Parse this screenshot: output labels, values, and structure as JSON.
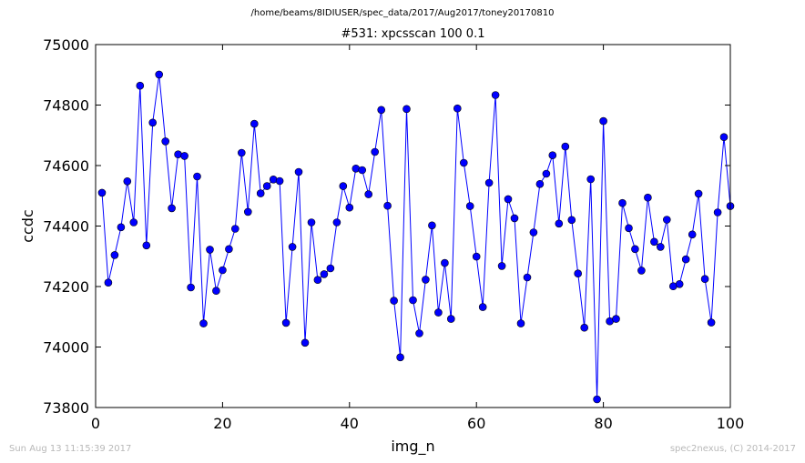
{
  "supertitle": "/home/beams/8IDIUSER/spec_data/2017/Aug2017/toney20170810",
  "title": "#531: xpcsscan 100 0.1",
  "footer_left": "Sun Aug 13 11:15:39 2017",
  "footer_right": "spec2nexus, (C) 2014-2017",
  "colors": {
    "series": "#0000ff",
    "axes": "#000000",
    "footer": "#b8b8b8"
  },
  "chart_data": {
    "type": "line",
    "xlabel": "img_n",
    "ylabel": "ccdc",
    "xlim": [
      0,
      100
    ],
    "ylim": [
      73800,
      75000
    ],
    "xticks": [
      0,
      20,
      40,
      60,
      80,
      100
    ],
    "yticks": [
      73800,
      74000,
      74200,
      74400,
      74600,
      74800,
      75000
    ],
    "grid": false,
    "marker": "circle",
    "x": [
      1,
      2,
      3,
      4,
      5,
      6,
      7,
      8,
      9,
      10,
      11,
      12,
      13,
      14,
      15,
      16,
      17,
      18,
      19,
      20,
      21,
      22,
      23,
      24,
      25,
      26,
      27,
      28,
      29,
      30,
      31,
      32,
      33,
      34,
      35,
      36,
      37,
      38,
      39,
      40,
      41,
      42,
      43,
      44,
      45,
      46,
      47,
      48,
      49,
      50,
      51,
      52,
      53,
      54,
      55,
      56,
      57,
      58,
      59,
      60,
      61,
      62,
      63,
      64,
      65,
      66,
      67,
      68,
      69,
      70,
      71,
      72,
      73,
      74,
      75,
      76,
      77,
      78,
      79,
      80,
      81,
      82,
      83,
      84,
      85,
      86,
      87,
      88,
      89,
      90,
      91,
      92,
      93,
      94,
      95,
      96,
      97,
      98,
      99,
      100
    ],
    "y": [
      74510,
      74213,
      74304,
      74396,
      74548,
      74412,
      74864,
      74336,
      74742,
      74901,
      74680,
      74459,
      74637,
      74632,
      74197,
      74564,
      74078,
      74322,
      74186,
      74254,
      74324,
      74391,
      74642,
      74447,
      74738,
      74508,
      74532,
      74554,
      74549,
      74080,
      74331,
      74579,
      74014,
      74412,
      74222,
      74241,
      74260,
      74412,
      74532,
      74461,
      74590,
      74585,
      74505,
      74645,
      74784,
      74467,
      74153,
      73966,
      74787,
      74155,
      74045,
      74223,
      74402,
      74114,
      74278,
      74093,
      74789,
      74609,
      74466,
      74299,
      74132,
      74543,
      74833,
      74268,
      74489,
      74426,
      74078,
      74230,
      74379,
      74539,
      74573,
      74634,
      74408,
      74663,
      74420,
      74243,
      74064,
      74555,
      73827,
      74747,
      74085,
      74093,
      74476,
      74393,
      74324,
      74253,
      74494,
      74348,
      74331,
      74421,
      74201,
      74208,
      74290,
      74372,
      74507,
      74225,
      74081,
      74445,
      74694,
      74466
    ]
  }
}
